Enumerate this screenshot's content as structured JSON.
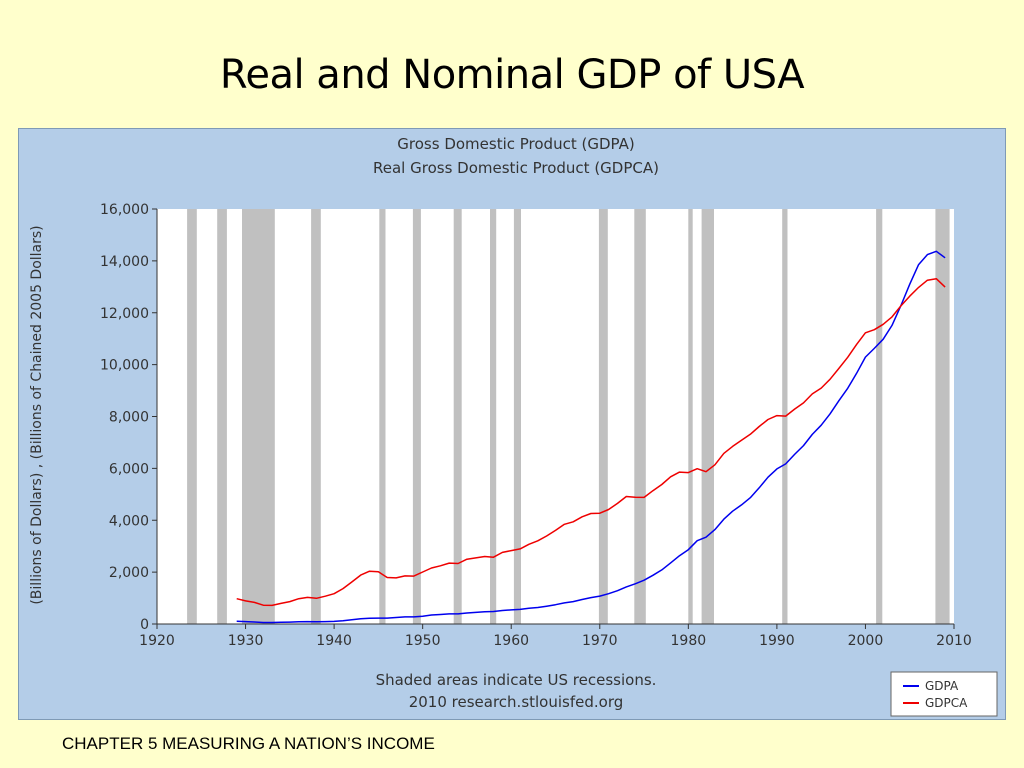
{
  "slide": {
    "title": "Real and Nominal GDP of USA",
    "footer": "CHAPTER 5 MEASURING A NATION’S INCOME"
  },
  "colors": {
    "background": "#ffffcc",
    "panel": "#b4cde8",
    "plot": "#ffffff",
    "recession": "#c0c0c0",
    "gdpa": "#0000ee",
    "gdpca": "#ee0000"
  },
  "chart_data": {
    "type": "line",
    "title": "Gross Domestic Product (GDPA)",
    "subtitle": "Real Gross Domestic Product (GDPCA)",
    "xlabel": "",
    "ylabel": "(Billions of Dollars) , (Billions of Chained 2005 Dollars)",
    "xlim": [
      1920,
      2010
    ],
    "ylim": [
      0,
      16000
    ],
    "x_ticks": [
      "1920",
      "1930",
      "1940",
      "1950",
      "1960",
      "1970",
      "1980",
      "1990",
      "2000",
      "2010"
    ],
    "y_ticks": [
      "0",
      "2,000",
      "4,000",
      "6,000",
      "8,000",
      "10,000",
      "12,000",
      "14,000",
      "16,000"
    ],
    "grid": false,
    "legend_position": "bottom-right",
    "note_lines": [
      "Shaded areas indicate US recessions.",
      "2010 research.stlouisfed.org"
    ],
    "recessions": [
      [
        1923.4,
        1924.5
      ],
      [
        1926.8,
        1927.9
      ],
      [
        1929.6,
        1933.3
      ],
      [
        1937.4,
        1938.5
      ],
      [
        1945.1,
        1945.8
      ],
      [
        1948.9,
        1949.8
      ],
      [
        1953.5,
        1954.4
      ],
      [
        1957.6,
        1958.3
      ],
      [
        1960.3,
        1961.1
      ],
      [
        1969.9,
        1970.9
      ],
      [
        1973.9,
        1975.2
      ],
      [
        1980.0,
        1980.5
      ],
      [
        1981.5,
        1982.9
      ],
      [
        1990.6,
        1991.2
      ],
      [
        2001.2,
        2001.9
      ],
      [
        2007.9,
        2009.5
      ]
    ],
    "series": [
      {
        "name": "GDPA",
        "color": "#0000ee",
        "points": [
          [
            1929,
            103
          ],
          [
            1930,
            91
          ],
          [
            1931,
            77
          ],
          [
            1932,
            59
          ],
          [
            1933,
            57
          ],
          [
            1934,
            66
          ],
          [
            1935,
            74
          ],
          [
            1936,
            84
          ],
          [
            1937,
            93
          ],
          [
            1938,
            87
          ],
          [
            1939,
            93
          ],
          [
            1940,
            102
          ],
          [
            1941,
            129
          ],
          [
            1942,
            166
          ],
          [
            1943,
            203
          ],
          [
            1944,
            225
          ],
          [
            1945,
            228
          ],
          [
            1946,
            228
          ],
          [
            1947,
            250
          ],
          [
            1948,
            275
          ],
          [
            1949,
            273
          ],
          [
            1950,
            300
          ],
          [
            1951,
            347
          ],
          [
            1952,
            367
          ],
          [
            1953,
            389
          ],
          [
            1954,
            391
          ],
          [
            1955,
            425
          ],
          [
            1956,
            449
          ],
          [
            1957,
            474
          ],
          [
            1958,
            481
          ],
          [
            1959,
            521
          ],
          [
            1960,
            543
          ],
          [
            1961,
            563
          ],
          [
            1962,
            605
          ],
          [
            1963,
            638
          ],
          [
            1964,
            686
          ],
          [
            1965,
            744
          ],
          [
            1966,
            815
          ],
          [
            1967,
            862
          ],
          [
            1968,
            943
          ],
          [
            1969,
            1019
          ],
          [
            1970,
            1075
          ],
          [
            1971,
            1168
          ],
          [
            1972,
            1282
          ],
          [
            1973,
            1429
          ],
          [
            1974,
            1549
          ],
          [
            1975,
            1689
          ],
          [
            1976,
            1878
          ],
          [
            1977,
            2086
          ],
          [
            1978,
            2357
          ],
          [
            1979,
            2632
          ],
          [
            1980,
            2863
          ],
          [
            1981,
            3211
          ],
          [
            1982,
            3345
          ],
          [
            1983,
            3638
          ],
          [
            1984,
            4041
          ],
          [
            1985,
            4347
          ],
          [
            1986,
            4590
          ],
          [
            1987,
            4870
          ],
          [
            1988,
            5253
          ],
          [
            1989,
            5658
          ],
          [
            1990,
            5980
          ],
          [
            1991,
            6174
          ],
          [
            1992,
            6539
          ],
          [
            1993,
            6879
          ],
          [
            1994,
            7309
          ],
          [
            1995,
            7664
          ],
          [
            1996,
            8100
          ],
          [
            1997,
            8609
          ],
          [
            1998,
            9089
          ],
          [
            1999,
            9666
          ],
          [
            2000,
            10290
          ],
          [
            2001,
            10625
          ],
          [
            2002,
            10980
          ],
          [
            2003,
            11512
          ],
          [
            2004,
            12277
          ],
          [
            2005,
            13095
          ],
          [
            2006,
            13858
          ],
          [
            2007,
            14240
          ],
          [
            2008,
            14369
          ],
          [
            2009,
            14119
          ]
        ]
      },
      {
        "name": "GDPCA",
        "color": "#ee0000",
        "points": [
          [
            1929,
            977
          ],
          [
            1930,
            892
          ],
          [
            1931,
            834
          ],
          [
            1932,
            726
          ],
          [
            1933,
            716
          ],
          [
            1934,
            794
          ],
          [
            1935,
            865
          ],
          [
            1936,
            977
          ],
          [
            1937,
            1027
          ],
          [
            1938,
            991
          ],
          [
            1939,
            1072
          ],
          [
            1940,
            1167
          ],
          [
            1941,
            1366
          ],
          [
            1942,
            1618
          ],
          [
            1943,
            1884
          ],
          [
            1944,
            2035
          ],
          [
            1945,
            2012
          ],
          [
            1946,
            1793
          ],
          [
            1947,
            1777
          ],
          [
            1948,
            1854
          ],
          [
            1949,
            1845
          ],
          [
            1950,
            2006
          ],
          [
            1951,
            2160
          ],
          [
            1952,
            2244
          ],
          [
            1953,
            2347
          ],
          [
            1954,
            2332
          ],
          [
            1955,
            2500
          ],
          [
            1956,
            2550
          ],
          [
            1957,
            2602
          ],
          [
            1958,
            2577
          ],
          [
            1959,
            2762
          ],
          [
            1960,
            2831
          ],
          [
            1961,
            2897
          ],
          [
            1962,
            3072
          ],
          [
            1963,
            3207
          ],
          [
            1964,
            3392
          ],
          [
            1965,
            3610
          ],
          [
            1966,
            3845
          ],
          [
            1967,
            3942
          ],
          [
            1968,
            4133
          ],
          [
            1969,
            4262
          ],
          [
            1970,
            4270
          ],
          [
            1971,
            4413
          ],
          [
            1972,
            4648
          ],
          [
            1973,
            4917
          ],
          [
            1974,
            4890
          ],
          [
            1975,
            4880
          ],
          [
            1976,
            5141
          ],
          [
            1977,
            5377
          ],
          [
            1978,
            5677
          ],
          [
            1979,
            5855
          ],
          [
            1980,
            5839
          ],
          [
            1981,
            5987
          ],
          [
            1982,
            5871
          ],
          [
            1983,
            6136
          ],
          [
            1984,
            6577
          ],
          [
            1985,
            6849
          ],
          [
            1986,
            7087
          ],
          [
            1987,
            7313
          ],
          [
            1988,
            7614
          ],
          [
            1989,
            7886
          ],
          [
            1990,
            8034
          ],
          [
            1991,
            8015
          ],
          [
            1992,
            8287
          ],
          [
            1993,
            8523
          ],
          [
            1994,
            8871
          ],
          [
            1995,
            9094
          ],
          [
            1996,
            9434
          ],
          [
            1997,
            9854
          ],
          [
            1998,
            10284
          ],
          [
            1999,
            10780
          ],
          [
            2000,
            11226
          ],
          [
            2001,
            11347
          ],
          [
            2002,
            11553
          ],
          [
            2003,
            11841
          ],
          [
            2004,
            12264
          ],
          [
            2005,
            12638
          ],
          [
            2006,
            12976
          ],
          [
            2007,
            13254
          ],
          [
            2008,
            13312
          ],
          [
            2009,
            12987
          ]
        ]
      }
    ]
  }
}
